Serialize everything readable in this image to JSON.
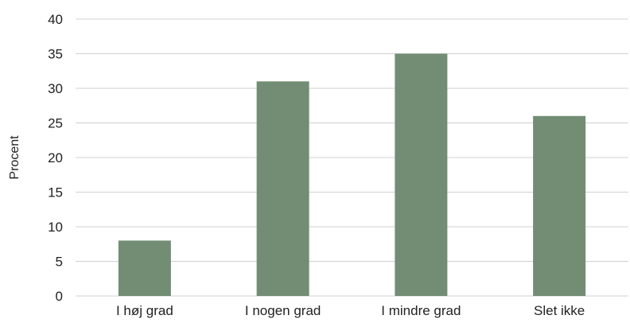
{
  "chart_data": {
    "type": "bar",
    "title": "",
    "xlabel": "",
    "ylabel": "Procent",
    "categories": [
      "I høj grad",
      "I nogen grad",
      "I mindre grad",
      "Slet ikke"
    ],
    "values": [
      8,
      31,
      35,
      26
    ],
    "ylim": [
      0,
      40
    ],
    "yticks": [
      0,
      5,
      10,
      15,
      20,
      25,
      30,
      35,
      40
    ],
    "grid": true,
    "legend": "none",
    "bar_color": "#728d73",
    "grid_color": "#d0d0d0"
  }
}
